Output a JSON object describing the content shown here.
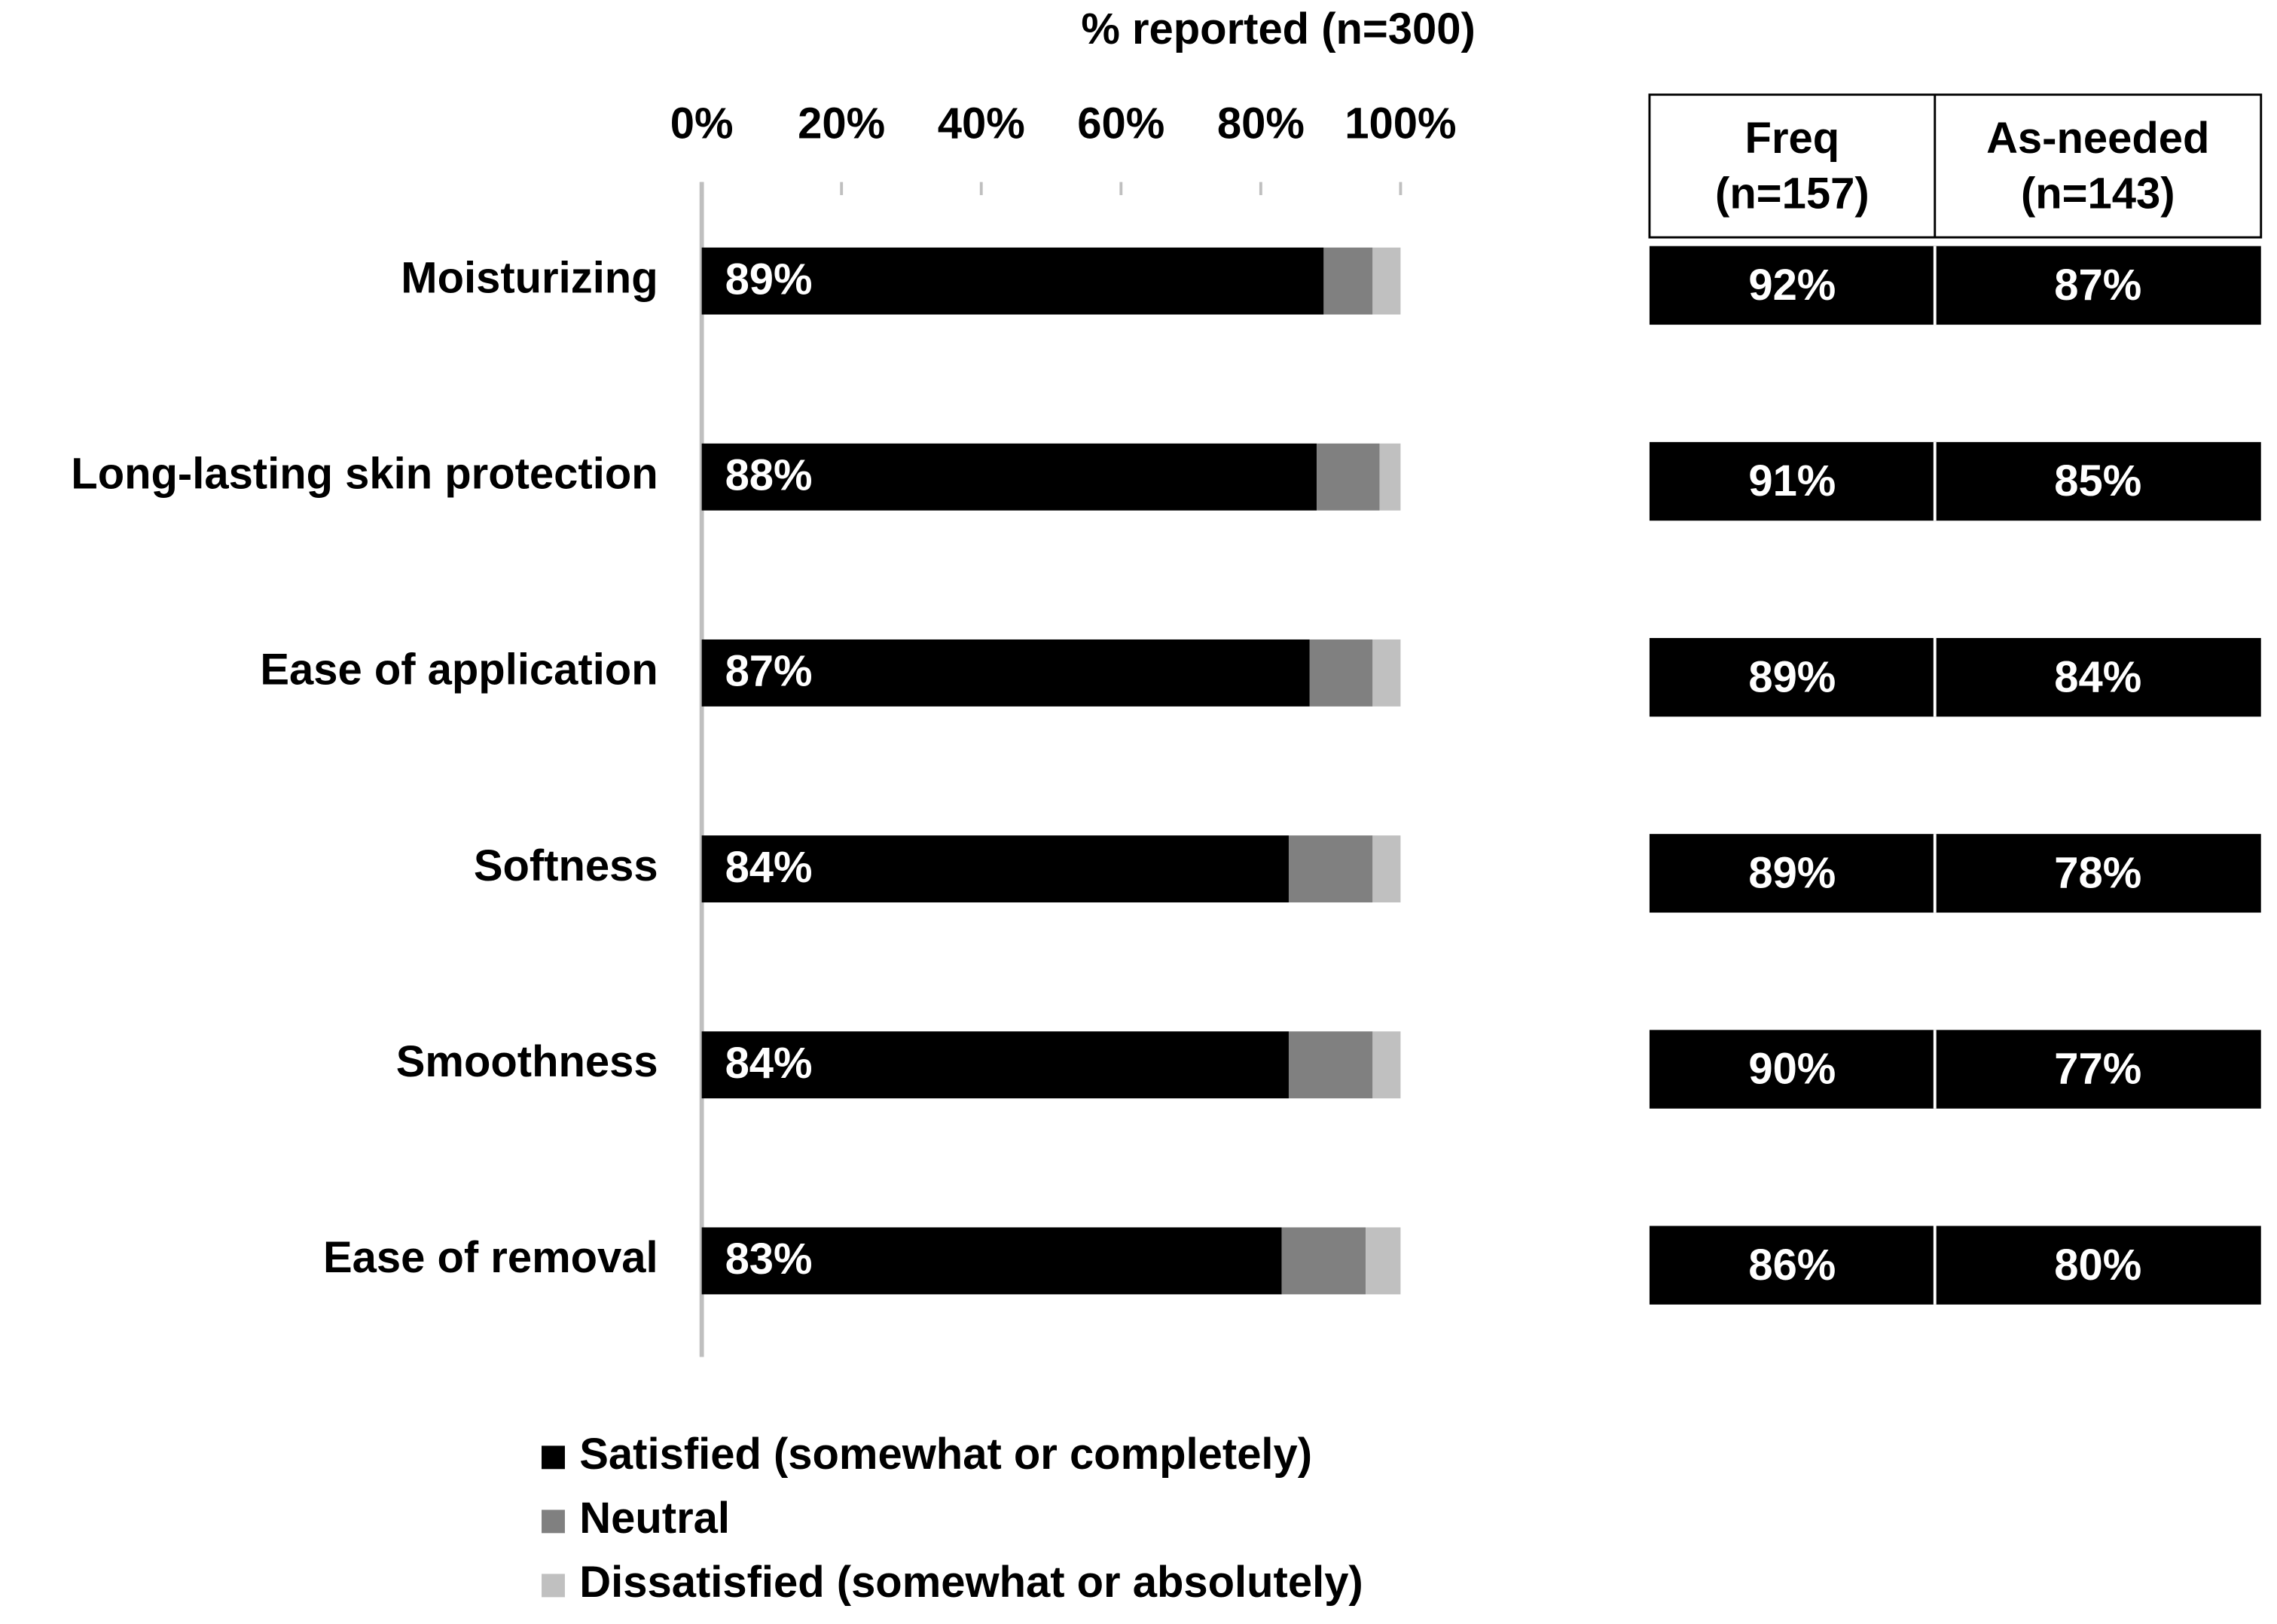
{
  "chart_data": {
    "type": "stacked-barh",
    "xlabel": "% reported (n=300)",
    "categories": [
      "Moisturizing",
      "Long-lasting skin protection",
      "Ease of application",
      "Softness",
      "Smoothness",
      "Ease of removal"
    ],
    "series": [
      {
        "name": "Satisfied (somewhat or completely)",
        "color": "#000000",
        "values": [
          89,
          88,
          87,
          84,
          84,
          83
        ],
        "value_labels": [
          "89%",
          "88%",
          "87%",
          "84%",
          "84%",
          "83%"
        ]
      },
      {
        "name": "Neutral",
        "color": "#808080",
        "values": [
          7,
          9,
          9,
          12,
          12,
          12
        ]
      },
      {
        "name": "Dissatisfied (somewhat or absolutely)",
        "color": "#c0c0c0",
        "values": [
          4,
          3,
          4,
          4,
          4,
          5
        ]
      }
    ],
    "xlim": [
      0,
      100
    ],
    "xticks": [
      {
        "value": 0,
        "label": "0%"
      },
      {
        "value": 20,
        "label": "20%"
      },
      {
        "value": 40,
        "label": "40%"
      },
      {
        "value": 60,
        "label": "60%"
      },
      {
        "value": 80,
        "label": "80%"
      },
      {
        "value": 100,
        "label": "100%"
      }
    ],
    "grid": false
  },
  "table": {
    "columns": [
      [
        "Freq",
        "(n=157)"
      ],
      [
        "As-needed",
        "(n=143)"
      ]
    ],
    "rows": [
      [
        "92%",
        "87%"
      ],
      [
        "91%",
        "85%"
      ],
      [
        "89%",
        "84%"
      ],
      [
        "89%",
        "78%"
      ],
      [
        "90%",
        "77%"
      ],
      [
        "86%",
        "80%"
      ]
    ]
  }
}
